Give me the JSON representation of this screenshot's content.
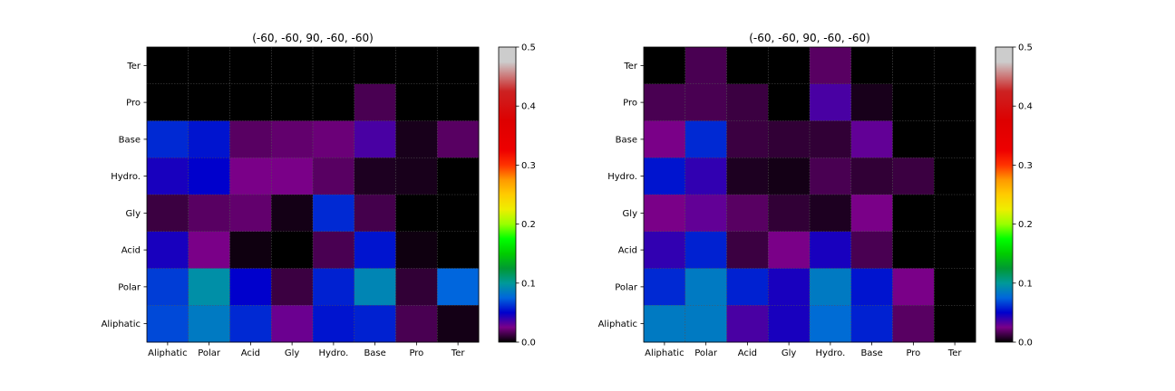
{
  "chart_data": [
    {
      "type": "heatmap",
      "title": "(-60, -60, 90, -60, -60)",
      "x_categories": [
        "Aliphatic",
        "Polar",
        "Acid",
        "Gly",
        "Hydro.",
        "Base",
        "Pro",
        "Ter"
      ],
      "y_categories_top_to_bottom": [
        "Ter",
        "Pro",
        "Base",
        "Hydro.",
        "Gly",
        "Acid",
        "Polar",
        "Aliphatic"
      ],
      "values_rows_top_to_bottom": [
        [
          0.0,
          0.0,
          0.0,
          0.0,
          0.0,
          0.0,
          0.0,
          0.0
        ],
        [
          0.0,
          0.0,
          0.0,
          0.0,
          0.0,
          0.015,
          0.0,
          0.0
        ],
        [
          0.06,
          0.055,
          0.018,
          0.02,
          0.022,
          0.035,
          0.005,
          0.018
        ],
        [
          0.045,
          0.05,
          0.025,
          0.025,
          0.018,
          0.006,
          0.005,
          0.0
        ],
        [
          0.012,
          0.018,
          0.02,
          0.004,
          0.06,
          0.014,
          0.0,
          0.0
        ],
        [
          0.045,
          0.025,
          0.003,
          0.0,
          0.015,
          0.055,
          0.003,
          0.0
        ],
        [
          0.065,
          0.095,
          0.05,
          0.012,
          0.058,
          0.09,
          0.01,
          0.075
        ],
        [
          0.068,
          0.085,
          0.06,
          0.028,
          0.055,
          0.058,
          0.015,
          0.004
        ]
      ],
      "colorbar": {
        "min": 0.0,
        "max": 0.5,
        "ticks": [
          "0.0",
          "0.1",
          "0.2",
          "0.3",
          "0.4",
          "0.5"
        ]
      },
      "colormap": "nipy_spectral",
      "grid": true
    },
    {
      "type": "heatmap",
      "title": "(-60, -60, 90, -60, -60)",
      "x_categories": [
        "Aliphatic",
        "Polar",
        "Acid",
        "Gly",
        "Hydro.",
        "Base",
        "Pro",
        "Ter"
      ],
      "y_categories_top_to_bottom": [
        "Ter",
        "Pro",
        "Base",
        "Hydro.",
        "Gly",
        "Acid",
        "Polar",
        "Aliphatic"
      ],
      "values_rows_top_to_bottom": [
        [
          0.0,
          0.015,
          0.0,
          0.0,
          0.018,
          0.0,
          0.0,
          0.0
        ],
        [
          0.015,
          0.015,
          0.012,
          0.0,
          0.035,
          0.005,
          0.0,
          0.0
        ],
        [
          0.025,
          0.06,
          0.012,
          0.01,
          0.01,
          0.03,
          0.0,
          0.0
        ],
        [
          0.055,
          0.04,
          0.006,
          0.004,
          0.015,
          0.01,
          0.012,
          0.0
        ],
        [
          0.025,
          0.03,
          0.018,
          0.01,
          0.006,
          0.025,
          0.0,
          0.0
        ],
        [
          0.04,
          0.058,
          0.012,
          0.025,
          0.045,
          0.015,
          0.0,
          0.0
        ],
        [
          0.06,
          0.085,
          0.058,
          0.045,
          0.085,
          0.055,
          0.025,
          0.0
        ],
        [
          0.085,
          0.085,
          0.035,
          0.045,
          0.078,
          0.058,
          0.018,
          0.0
        ]
      ],
      "colorbar": {
        "min": 0.0,
        "max": 0.5,
        "ticks": [
          "0.0",
          "0.1",
          "0.2",
          "0.3",
          "0.4",
          "0.5"
        ]
      },
      "colormap": "nipy_spectral",
      "grid": true
    }
  ]
}
